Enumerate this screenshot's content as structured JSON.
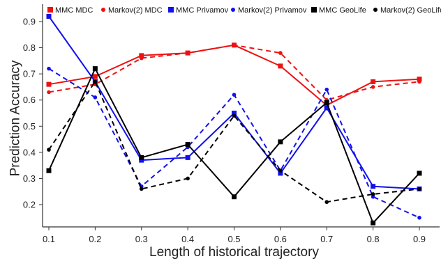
{
  "chart_data": {
    "type": "line",
    "title": "",
    "xlabel": "Length of historical trajectory",
    "ylabel": "Prediction Accuracy",
    "x": [
      0.1,
      0.2,
      0.3,
      0.4,
      0.5,
      0.6,
      0.7,
      0.8,
      0.9
    ],
    "x_tick_labels": [
      "0.1",
      "0.2",
      "0.3",
      "0.4",
      "0.5",
      "0.6",
      "0.7",
      "0.8",
      "0.9"
    ],
    "xlim": [
      0.1,
      0.9
    ],
    "y_ticks": [
      0.2,
      0.3,
      0.4,
      0.5,
      0.6,
      0.7,
      0.8,
      0.9
    ],
    "y_tick_labels": [
      "0.2",
      "0.3",
      "0.4",
      "0.5",
      "0.6",
      "0.7",
      "0.8",
      "0.9"
    ],
    "ylim": [
      0.12,
      0.95
    ],
    "grid": false,
    "legend_position": "top",
    "series": [
      {
        "name": "MMC MDC",
        "color": "#ee1111",
        "dash": "solid",
        "marker": "square",
        "values": [
          0.66,
          0.69,
          0.77,
          0.78,
          0.81,
          0.73,
          0.58,
          0.67,
          0.68
        ]
      },
      {
        "name": "Markov(2) MDC",
        "color": "#ee1111",
        "dash": "dashed",
        "marker": "circle",
        "values": [
          0.63,
          0.66,
          0.76,
          0.78,
          0.81,
          0.78,
          0.6,
          0.65,
          0.67
        ]
      },
      {
        "name": "MMC Privamov",
        "color": "#1111ee",
        "dash": "solid",
        "marker": "square",
        "values": [
          0.92,
          0.67,
          0.37,
          0.38,
          0.55,
          0.32,
          0.57,
          0.27,
          0.26
        ]
      },
      {
        "name": "Markov(2) Privamov",
        "color": "#1111ee",
        "dash": "dashed",
        "marker": "circle",
        "values": [
          0.72,
          0.61,
          0.27,
          0.42,
          0.62,
          0.33,
          0.64,
          0.23,
          0.15
        ]
      },
      {
        "name": "MMC GeoLife",
        "color": "#000000",
        "dash": "solid",
        "marker": "square",
        "values": [
          0.33,
          0.72,
          0.38,
          0.43,
          0.23,
          0.44,
          0.59,
          0.13,
          0.32
        ]
      },
      {
        "name": "Markov(2) GeoLife",
        "color": "#000000",
        "dash": "dashed",
        "marker": "circle",
        "values": [
          0.41,
          0.67,
          0.26,
          0.3,
          0.54,
          0.33,
          0.21,
          0.24,
          0.26
        ]
      }
    ]
  }
}
